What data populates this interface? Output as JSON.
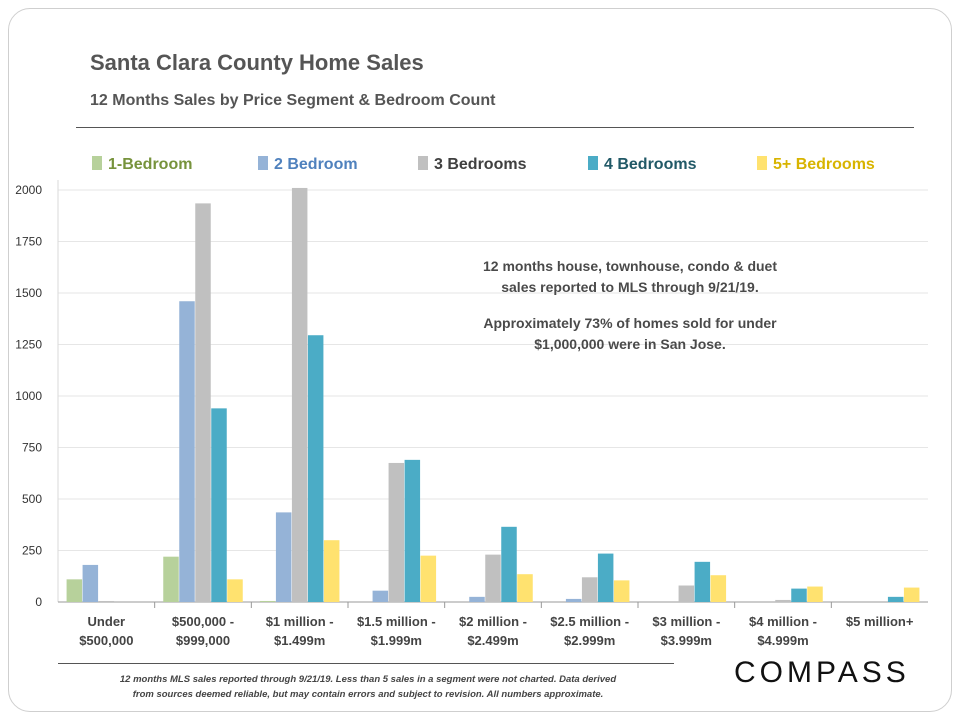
{
  "header": {
    "title": "Santa Clara County Home Sales",
    "subtitle": "12 Months Sales by Price Segment & Bedroom Count"
  },
  "annotation": {
    "line1": "12 months house, townhouse, condo & duet",
    "line2": "sales reported to MLS through 9/21/19.",
    "line3": "Approximately 73% of homes sold for under",
    "line4": "$1,000,000 were in San Jose."
  },
  "footnote": {
    "line1": "12 months MLS sales reported through 9/21/19. Less than 5 sales in a segment were not charted. Data derived",
    "line2": "from sources deemed reliable, but may contain errors and subject to revision. All numbers approximate."
  },
  "brand": {
    "name": "COMPASS"
  },
  "chart_data": {
    "type": "bar",
    "ylim": [
      0,
      2000
    ],
    "yticks": [
      0,
      250,
      500,
      750,
      1000,
      1250,
      1500,
      1750,
      2000
    ],
    "grid": true,
    "legend_position": "top",
    "categories": [
      [
        "Under",
        "$500,000"
      ],
      [
        "$500,000 -",
        "$999,000"
      ],
      [
        "$1 million -",
        "$1.499m"
      ],
      [
        "$1.5 million -",
        "$1.999m"
      ],
      [
        "$2 million -",
        "$2.499m"
      ],
      [
        "$2.5 million -",
        "$2.999m"
      ],
      [
        "$3 million -",
        "$3.999m"
      ],
      [
        "$4 million -",
        "$4.999m"
      ],
      [
        "$5 million+",
        ""
      ]
    ],
    "series": [
      {
        "name": "1-Bedroom",
        "color": "#b7d19b",
        "label_color": "#77933c",
        "values": [
          110,
          220,
          5,
          0,
          0,
          0,
          0,
          0,
          0
        ]
      },
      {
        "name": "2 Bedroom",
        "color": "#95b3d7",
        "label_color": "#4f81bd",
        "values": [
          180,
          1460,
          435,
          55,
          25,
          15,
          0,
          0,
          0
        ]
      },
      {
        "name": "3 Bedrooms",
        "color": "#c0c0c0",
        "label_color": "#404040",
        "values": [
          5,
          1935,
          2010,
          675,
          230,
          120,
          80,
          10,
          0
        ]
      },
      {
        "name": "4 Bedrooms",
        "color": "#4bacc6",
        "label_color": "#215967",
        "values": [
          0,
          940,
          1295,
          690,
          365,
          235,
          195,
          65,
          25
        ]
      },
      {
        "name": "5+ Bedrooms",
        "color": "#ffe26f",
        "label_color": "#d8b400",
        "values": [
          0,
          110,
          300,
          225,
          135,
          105,
          130,
          75,
          70
        ]
      }
    ]
  }
}
